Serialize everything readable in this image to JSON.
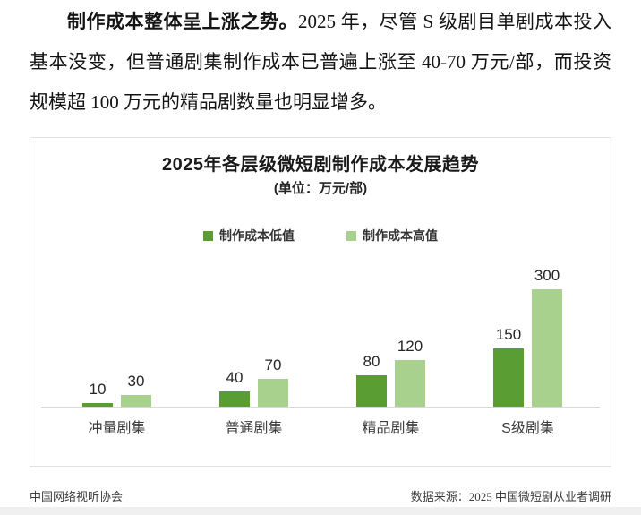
{
  "paragraph": {
    "lead_bold": "制作成本整体呈上涨之势。",
    "body_text": "2025 年，尽管 S 级剧目单剧成本投入基本没变，但普通剧集制作成本已普遍上涨至 40-70 万元/部，而投资规模超 100 万元的精品剧数量也明显增多。"
  },
  "chart_data": {
    "type": "bar",
    "title": "2025年各层级微短剧制作成本发展趋势",
    "subtitle": "(单位：万元/部)",
    "categories": [
      "冲量剧集",
      "普通剧集",
      "精品剧集",
      "S级剧集"
    ],
    "series": [
      {
        "name": "制作成本低值",
        "color": "#5A9E33",
        "values": [
          10,
          40,
          80,
          150
        ]
      },
      {
        "name": "制作成本高值",
        "color": "#A9D18E",
        "values": [
          30,
          70,
          120,
          300
        ]
      }
    ],
    "ylim": [
      0,
      300
    ],
    "xlabel": "",
    "ylabel": "",
    "grid": false,
    "data_labels": true,
    "legend_position": "top-center",
    "axis_line_color": "#d9d9d9",
    "value_label_color": "#262626"
  },
  "footer": {
    "left": "中国网络视听协会",
    "right": "数据来源：2025 中国微短剧从业者调研"
  }
}
